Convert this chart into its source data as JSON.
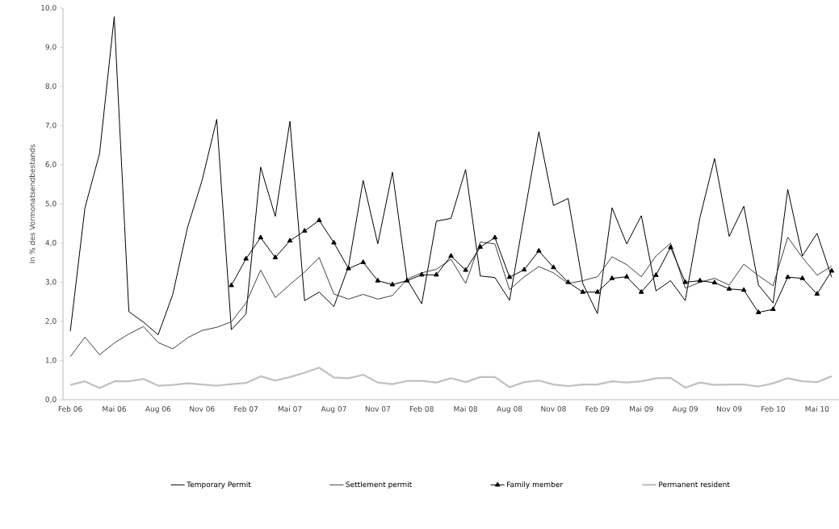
{
  "chart_data": {
    "type": "line",
    "ylabel": "In % des Vormonatsendbestands",
    "categories": [
      "Feb 06",
      null,
      null,
      "Mai 06",
      null,
      null,
      "Aug 06",
      null,
      null,
      "Nov 06",
      null,
      null,
      "Feb 07",
      null,
      null,
      "Mai 07",
      null,
      null,
      "Aug 07",
      null,
      null,
      "Nov 07",
      null,
      null,
      "Feb 08",
      null,
      null,
      "Mai 08",
      null,
      null,
      "Aug 08",
      null,
      null,
      "Nov 08",
      null,
      null,
      "Feb 09",
      null,
      null,
      "Mai 09",
      null,
      null,
      "Aug 09",
      null,
      null,
      "Nov 09",
      null,
      null,
      "Feb 10",
      null,
      null,
      "Mai 10",
      null
    ],
    "series": [
      {
        "name": "Temporary Permit",
        "color": "#000000",
        "marker": "none",
        "values": [
          1.75,
          4.9,
          6.29,
          9.78,
          2.25,
          1.98,
          1.66,
          2.69,
          4.39,
          5.6,
          7.16,
          1.79,
          2.19,
          5.94,
          4.68,
          7.11,
          2.53,
          2.75,
          2.38,
          3.4,
          5.6,
          3.98,
          5.81,
          3.07,
          2.45,
          4.56,
          4.63,
          5.88,
          3.16,
          3.12,
          2.54,
          4.7,
          6.84,
          4.96,
          5.14,
          2.97,
          2.2,
          4.9,
          3.98,
          4.7,
          2.78,
          3.04,
          2.53,
          4.65,
          6.16,
          4.17,
          4.94,
          2.93,
          2.47,
          5.37,
          3.67,
          4.25,
          3.13
        ]
      },
      {
        "name": "Settlement permit",
        "color": "#404040",
        "marker": "none",
        "values": [
          1.1,
          1.6,
          1.15,
          1.45,
          1.68,
          1.87,
          1.46,
          1.3,
          1.58,
          1.77,
          1.85,
          1.99,
          2.47,
          3.31,
          2.61,
          2.94,
          3.26,
          3.63,
          2.7,
          2.57,
          2.69,
          2.57,
          2.66,
          3.08,
          3.24,
          3.33,
          3.59,
          2.97,
          4.03,
          3.98,
          2.81,
          3.14,
          3.4,
          3.24,
          2.97,
          3.04,
          3.14,
          3.65,
          3.45,
          3.14,
          3.67,
          4.0,
          2.85,
          3.0,
          3.1,
          2.93,
          3.46,
          3.17,
          2.91,
          4.15,
          3.63,
          3.18,
          3.41
        ]
      },
      {
        "name": "Family member",
        "color": "#000000",
        "marker": "triangle",
        "values": [
          null,
          null,
          null,
          null,
          null,
          null,
          null,
          null,
          null,
          null,
          null,
          2.92,
          3.6,
          4.14,
          3.63,
          4.06,
          4.31,
          4.58,
          4.01,
          3.35,
          3.51,
          3.04,
          2.94,
          3.04,
          3.19,
          3.19,
          3.67,
          3.31,
          3.9,
          4.14,
          3.13,
          3.32,
          3.8,
          3.38,
          3.0,
          2.75,
          2.75,
          3.1,
          3.14,
          2.75,
          3.18,
          3.89,
          3.0,
          3.04,
          2.99,
          2.83,
          2.8,
          2.23,
          2.31,
          3.13,
          3.1,
          2.7,
          3.29
        ]
      },
      {
        "name": "Permanent resident",
        "color": "#c0c0c0",
        "marker": "none",
        "values": [
          0.38,
          0.47,
          0.3,
          0.47,
          0.47,
          0.53,
          0.36,
          0.38,
          0.42,
          0.39,
          0.36,
          0.4,
          0.43,
          0.6,
          0.49,
          0.58,
          0.69,
          0.82,
          0.57,
          0.55,
          0.64,
          0.44,
          0.4,
          0.48,
          0.48,
          0.44,
          0.55,
          0.45,
          0.58,
          0.58,
          0.32,
          0.45,
          0.49,
          0.39,
          0.35,
          0.39,
          0.39,
          0.47,
          0.44,
          0.47,
          0.55,
          0.56,
          0.31,
          0.44,
          0.38,
          0.39,
          0.39,
          0.34,
          0.42,
          0.55,
          0.47,
          0.45,
          0.6
        ]
      }
    ],
    "ylim": [
      0,
      10
    ],
    "yticks": [
      {
        "value": 0,
        "label": "0,0"
      },
      {
        "value": 1,
        "label": "1,0"
      },
      {
        "value": 2,
        "label": "2,0"
      },
      {
        "value": 3,
        "label": "3,0"
      },
      {
        "value": 4,
        "label": "4,0"
      },
      {
        "value": 5,
        "label": "5,0"
      },
      {
        "value": 6,
        "label": "6,0"
      },
      {
        "value": 7,
        "label": "7,0"
      },
      {
        "value": 8,
        "label": "8,0"
      },
      {
        "value": 9,
        "label": "9,0"
      },
      {
        "value": 10,
        "label": "10,0"
      }
    ],
    "grid": false,
    "legend": "bottom"
  }
}
